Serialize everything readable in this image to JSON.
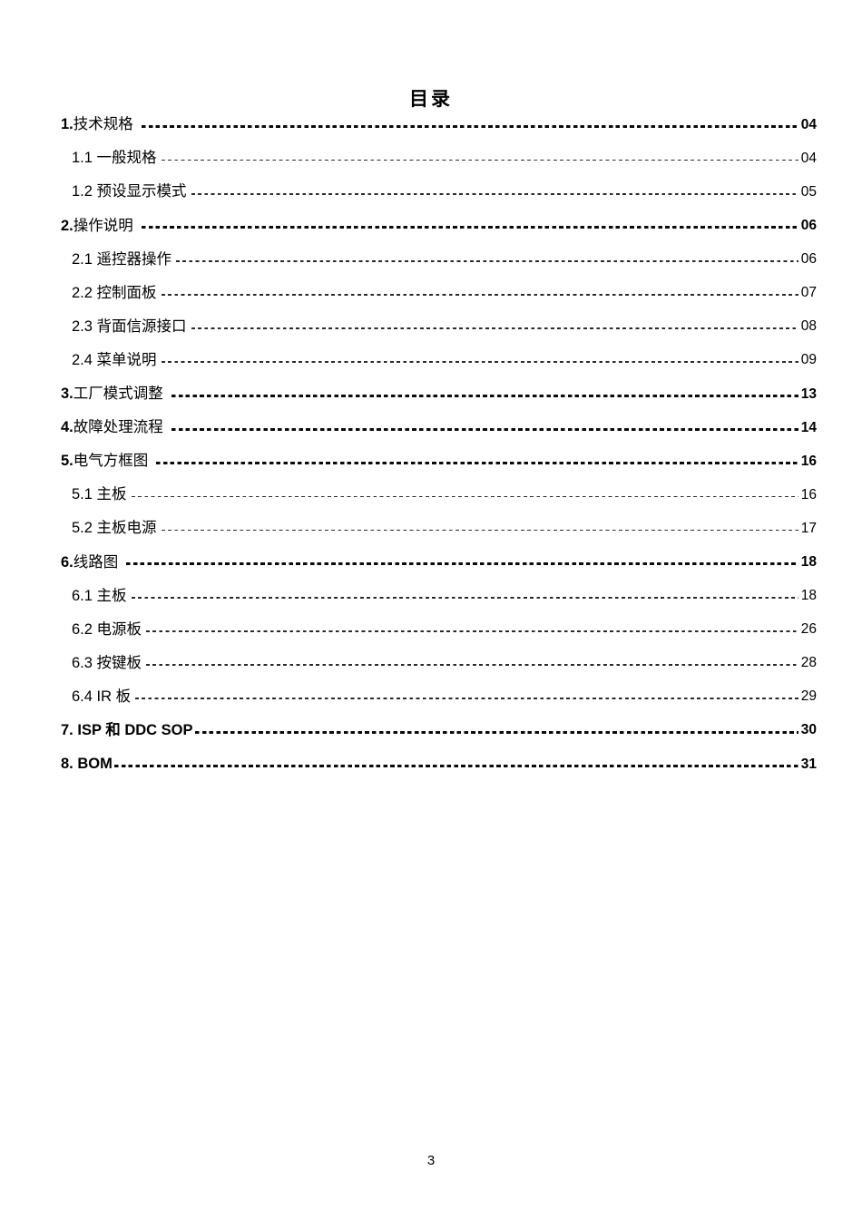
{
  "page": {
    "title": "目录",
    "footer_page_number": "3"
  },
  "toc": {
    "entries": [
      {
        "num": "1.",
        "text": "技术规格",
        "page": "04",
        "level": 1,
        "text_bold": false
      },
      {
        "num": "1.1 ",
        "text": "一般规格",
        "page": "04",
        "level": 2,
        "text_bold": false
      },
      {
        "num": "1.2 ",
        "text": "预设显示模式",
        "page": "05",
        "level": 2,
        "text_bold": false
      },
      {
        "num": "2.",
        "text": "操作说明",
        "page": "06",
        "level": 1,
        "text_bold": false
      },
      {
        "num": "2.1 ",
        "text": "遥控器操作",
        "page": "06",
        "level": 2,
        "text_bold": false
      },
      {
        "num": "2.2 ",
        "text": "控制面板",
        "page": "07",
        "level": 2,
        "text_bold": false
      },
      {
        "num": "2.3 ",
        "text": "背面信源接口",
        "page": "08",
        "level": 2,
        "text_bold": false
      },
      {
        "num": "2.4 ",
        "text": "菜单说明",
        "page": "09",
        "level": 2,
        "text_bold": false
      },
      {
        "num": "3.",
        "text": "工厂模式调整",
        "page": "13",
        "level": 1,
        "text_bold": false
      },
      {
        "num": "4.",
        "text": "故障处理流程",
        "page": "14",
        "level": 1,
        "text_bold": false
      },
      {
        "num": "5.",
        "text": "电气方框图",
        "page": "16",
        "level": 1,
        "text_bold": false
      },
      {
        "num": "5.1 ",
        "text": "主板",
        "page": "16",
        "level": 2,
        "text_bold": false
      },
      {
        "num": "5.2 ",
        "text": "主板电源",
        "page": "17",
        "level": 2,
        "text_bold": false
      },
      {
        "num": "6.",
        "text": "线路图",
        "page": "18",
        "level": 1,
        "text_bold": false
      },
      {
        "num": "6.1 ",
        "text": "主板",
        "page": "18",
        "level": 2,
        "text_bold": false
      },
      {
        "num": "6.2 ",
        "text": "电源板",
        "page": "26",
        "level": 2,
        "text_bold": false
      },
      {
        "num": "6.3 ",
        "text": "按键板",
        "page": "28",
        "level": 2,
        "text_bold": false
      },
      {
        "num": "6.4 ",
        "text": "IR 板",
        "page": "29",
        "level": 2,
        "text_bold": false
      },
      {
        "num": "7. ",
        "text": "ISP 和 DDC SOP",
        "page": "30",
        "level": 1,
        "text_bold": true
      },
      {
        "num": "8. ",
        "text": "BOM",
        "page": "31",
        "level": 1,
        "text_bold": true
      }
    ]
  }
}
